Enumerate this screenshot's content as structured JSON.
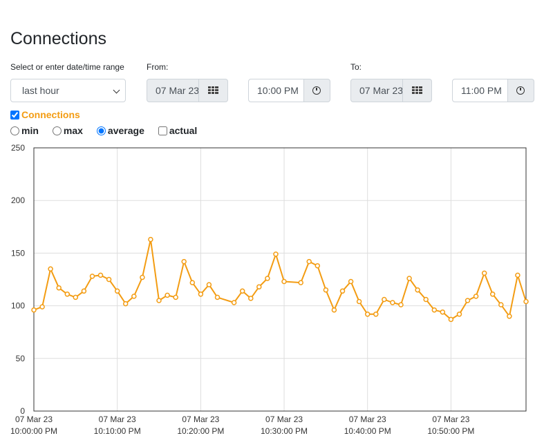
{
  "page": {
    "title": "Connections"
  },
  "range": {
    "label": "Select or enter date/time range",
    "selected": "last hour",
    "from_label": "From:",
    "from_date": "07 Mar 23",
    "from_time": "10:00 PM",
    "to_label": "To:",
    "to_date": "07 Mar 23",
    "to_time": "11:00 PM"
  },
  "icons": {
    "calendar": "calendar-grid-icon",
    "clock": "clock-icon"
  },
  "series_toggle": {
    "label": "Connections",
    "checked": true
  },
  "options": [
    {
      "label": "min",
      "type": "radio",
      "checked": false
    },
    {
      "label": "max",
      "type": "radio",
      "checked": false
    },
    {
      "label": "average",
      "type": "radio",
      "checked": true
    },
    {
      "label": "actual",
      "type": "checkbox",
      "checked": false
    }
  ],
  "colors": {
    "series": "#f39c12",
    "grid": "#dddddd",
    "axis": "#333333"
  },
  "chart_data": {
    "type": "line",
    "title": "",
    "xlabel": "",
    "ylabel": "",
    "ylim": [
      0,
      250
    ],
    "yticks": [
      0,
      50,
      100,
      150,
      200,
      250
    ],
    "xlim_minutes": [
      0,
      59
    ],
    "xticks": [
      {
        "minute": 0,
        "date": "07 Mar 23",
        "time": "10:00:00 PM"
      },
      {
        "minute": 10,
        "date": "07 Mar 23",
        "time": "10:10:00 PM"
      },
      {
        "minute": 20,
        "date": "07 Mar 23",
        "time": "10:20:00 PM"
      },
      {
        "minute": 30,
        "date": "07 Mar 23",
        "time": "10:30:00 PM"
      },
      {
        "minute": 40,
        "date": "07 Mar 23",
        "time": "10:40:00 PM"
      },
      {
        "minute": 50,
        "date": "07 Mar 23",
        "time": "10:50:00 PM"
      }
    ],
    "grid": true,
    "legend": "none",
    "series": [
      {
        "x": [
          0,
          1,
          2,
          3,
          4,
          5,
          6,
          7,
          8,
          9,
          10,
          11,
          12,
          13,
          14,
          15,
          16,
          17,
          18,
          19,
          20,
          21,
          22,
          23,
          24,
          25,
          26,
          27,
          28,
          29,
          30,
          31,
          32,
          33,
          34,
          35,
          36,
          37,
          38,
          39,
          40,
          41,
          42,
          43,
          44,
          45,
          46,
          47,
          48,
          49,
          50,
          51,
          52,
          53,
          54,
          55,
          56,
          57,
          58,
          59
        ],
        "y": [
          96,
          99,
          135,
          117,
          111,
          108,
          114,
          128,
          129,
          125,
          114,
          102,
          109,
          127,
          163,
          105,
          110,
          108,
          142,
          122,
          111,
          120,
          108,
          null,
          103,
          114,
          107,
          118,
          126,
          149,
          123,
          null,
          122,
          142,
          138,
          115,
          96,
          114,
          123,
          104,
          92,
          92,
          106,
          103,
          101,
          126,
          115,
          106,
          96,
          94,
          87,
          92,
          105,
          109,
          131,
          111,
          101,
          90,
          129,
          104
        ]
      }
    ]
  }
}
